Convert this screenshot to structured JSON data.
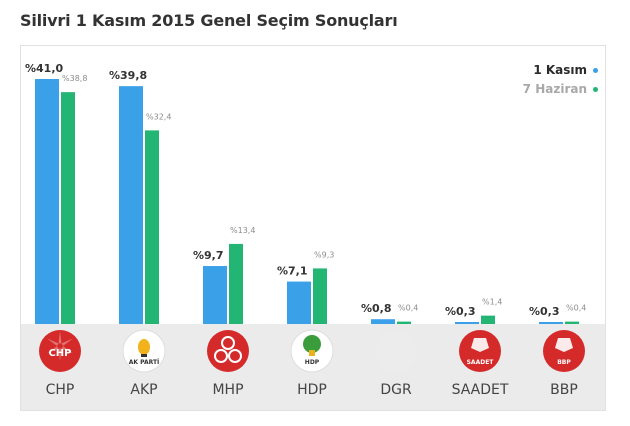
{
  "title": "Silivri 1 Kasım 2015 Genel Seçim Sonuçları",
  "chart_data": {
    "type": "bar",
    "categories": [
      "CHP",
      "AKP",
      "MHP",
      "HDP",
      "DGR",
      "SAADET",
      "BBP"
    ],
    "series": [
      {
        "name": "1 Kasım",
        "values": [
          41.0,
          39.8,
          9.7,
          7.1,
          0.8,
          0.3,
          0.3
        ],
        "labels": [
          "%41,0",
          "%39,8",
          "%9,7",
          "%7,1",
          "%0,8",
          "%0,3",
          "%0,3"
        ],
        "color": "#3aa0e8"
      },
      {
        "name": "7 Haziran",
        "values": [
          38.8,
          32.4,
          13.4,
          9.3,
          0.4,
          1.4,
          0.4
        ],
        "labels": [
          "%38,8",
          "%32,4",
          "%13,4",
          "%9,3",
          "%0,4",
          "%1,4",
          "%0,4"
        ],
        "color": "#22b573"
      }
    ],
    "ylim": [
      0,
      41.0
    ],
    "grid": false,
    "legend": "top-right"
  },
  "logos": [
    {
      "party": "CHP",
      "bg": "#d52a2a",
      "text": "CHP",
      "text_color": "#ffffff"
    },
    {
      "party": "AKP",
      "bg": "#ffffff",
      "text": "AK PARTİ",
      "text_color": "#333333"
    },
    {
      "party": "MHP",
      "bg": "#d52a2a",
      "text": "",
      "text_color": "#ffffff"
    },
    {
      "party": "HDP",
      "bg": "#ffffff",
      "text": "HDP",
      "text_color": "#333333"
    },
    {
      "party": "DGR",
      "bg": "#ececec",
      "text": "",
      "text_color": "#ffffff"
    },
    {
      "party": "SAADET",
      "bg": "#d52a2a",
      "text": "SAADET",
      "text_color": "#ffffff"
    },
    {
      "party": "BBP",
      "bg": "#d52a2a",
      "text": "BBP",
      "text_color": "#ffffff"
    }
  ]
}
